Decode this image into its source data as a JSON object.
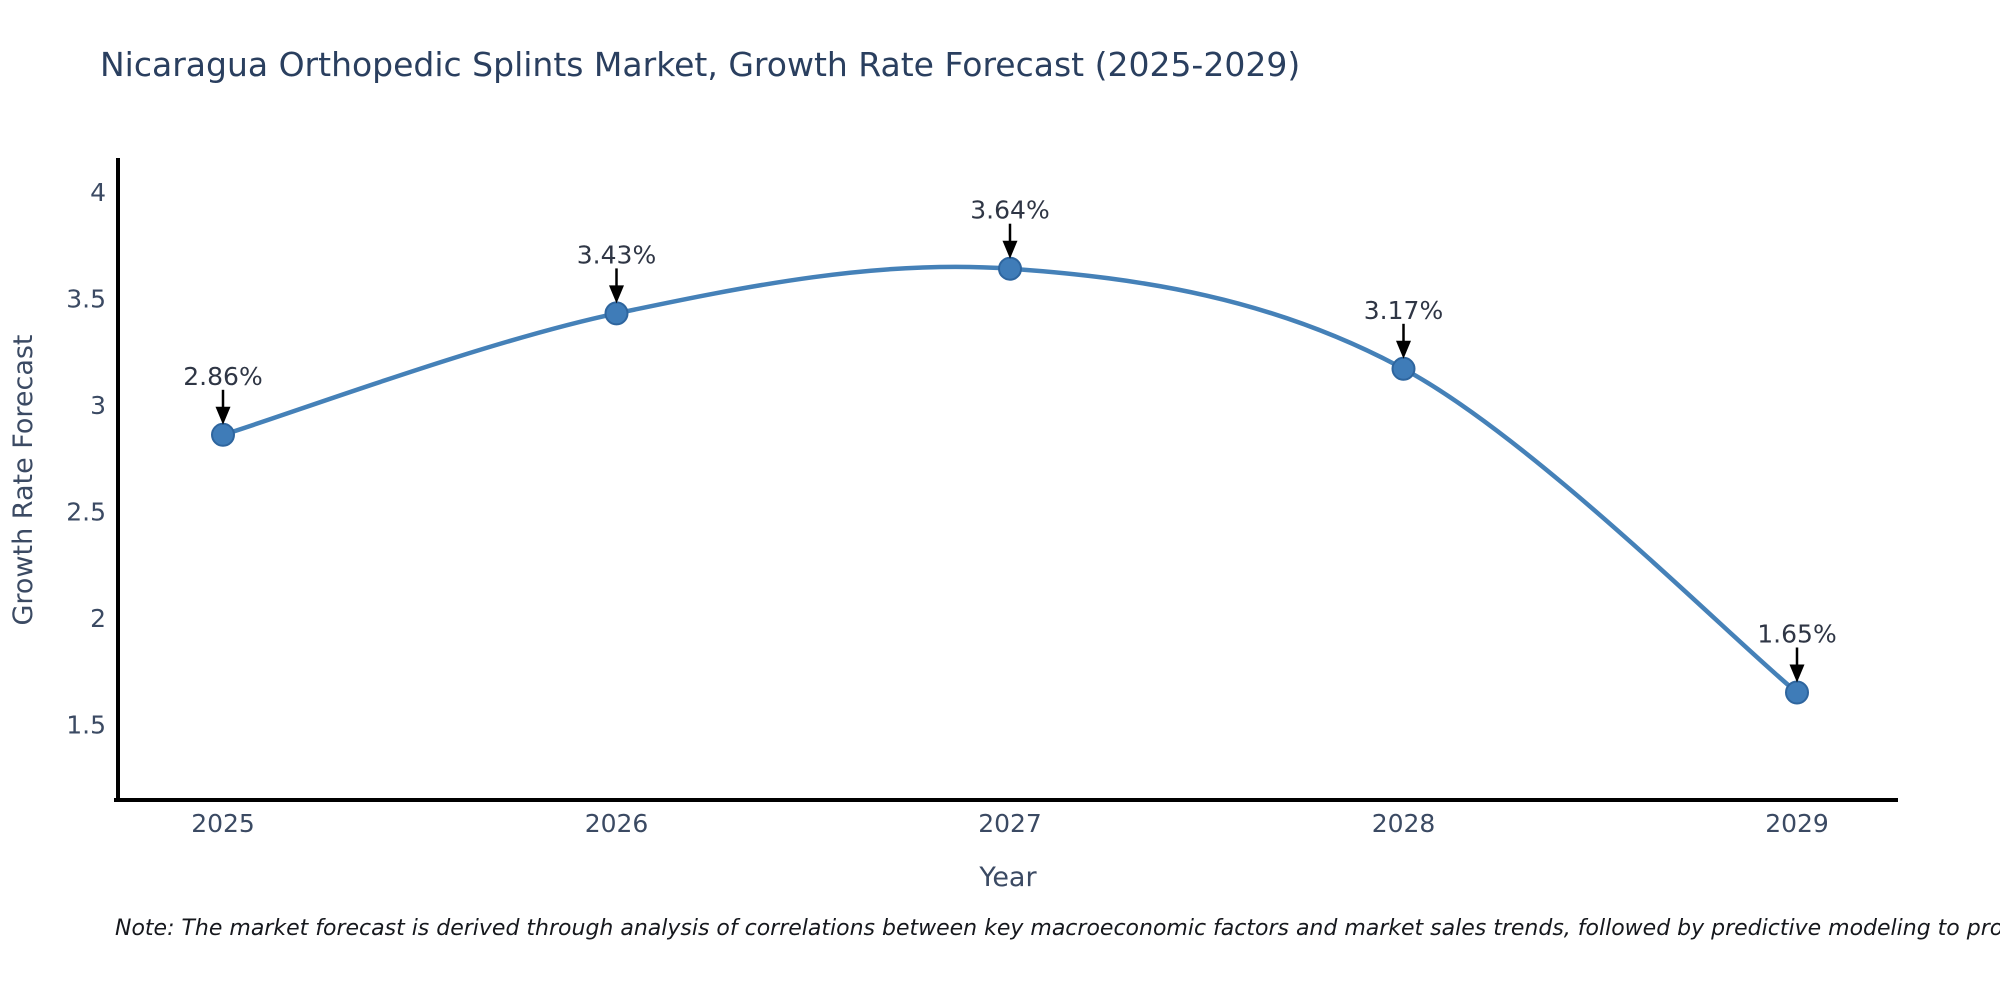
{
  "page": {
    "background": "#ffffff"
  },
  "chart_data": {
    "type": "line",
    "title": "Nicaragua Orthopedic Splints Market, Growth Rate Forecast (2025-2029)",
    "xlabel": "Year",
    "ylabel": "Growth Rate Forecast",
    "categories": [
      "2025",
      "2026",
      "2027",
      "2028",
      "2029"
    ],
    "values": [
      2.86,
      3.43,
      3.64,
      3.17,
      1.65
    ],
    "point_labels": [
      "2.86%",
      "3.43%",
      "3.64%",
      "3.17%",
      "1.65%"
    ],
    "ytick_labels": [
      "4",
      "3.5",
      "3",
      "2.5",
      "2",
      "1.5"
    ],
    "ytick_values": [
      4,
      3.5,
      3,
      2.5,
      2,
      1.5
    ],
    "ylim": [
      1.15,
      4.16
    ],
    "grid": false,
    "legend_position": "none",
    "line_shape": "spline",
    "annotation_style": "down-arrow",
    "colors": {
      "line": "#4581b8",
      "marker_fill": "#3f7cb8",
      "marker_edge": "#2e659e",
      "arrow": "#000000",
      "title_text": "#2a3f5f",
      "tick_text": "#3b4a63",
      "annotation_text": "#2f3645",
      "spine": "#000000"
    }
  },
  "footnote": "Note: The market forecast is derived through analysis of correlations between key macroeconomic factors and market sales trends, followed by predictive modeling to project future sales"
}
